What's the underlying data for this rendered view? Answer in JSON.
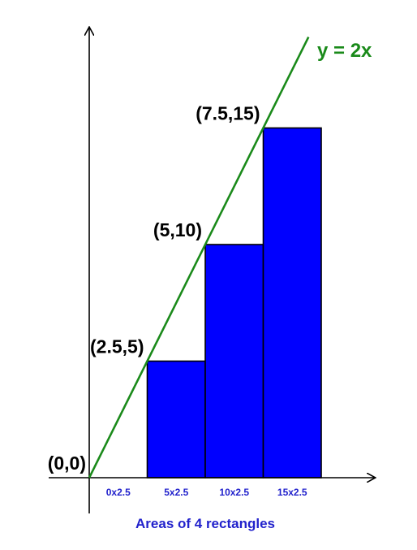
{
  "chart_data": {
    "type": "bar",
    "line": {
      "label": "y = 2x",
      "slope": 2,
      "color": "#1a8a1a"
    },
    "points": [
      {
        "label": "(0,0)",
        "x": 0,
        "y": 0
      },
      {
        "label": "(2.5,5)",
        "x": 2.5,
        "y": 5
      },
      {
        "label": "(5,10)",
        "x": 5,
        "y": 10
      },
      {
        "label": "(7.5,15)",
        "x": 7.5,
        "y": 15
      }
    ],
    "rectangles": [
      {
        "x0": 0,
        "x1": 2.5,
        "height": 0,
        "label": "0x2.5"
      },
      {
        "x0": 2.5,
        "x1": 5,
        "height": 5,
        "label": "5x2.5"
      },
      {
        "x0": 5,
        "x1": 7.5,
        "height": 10,
        "label": "10x2.5"
      },
      {
        "x0": 7.5,
        "x1": 10,
        "height": 15,
        "label": "15x2.5"
      }
    ],
    "bar_color": "#0000ff",
    "label_color": "#2222cc",
    "caption": "Areas of 4 rectangles",
    "xlim": [
      0,
      12.3
    ],
    "ylim": [
      0,
      19.3
    ],
    "grid": false
  }
}
